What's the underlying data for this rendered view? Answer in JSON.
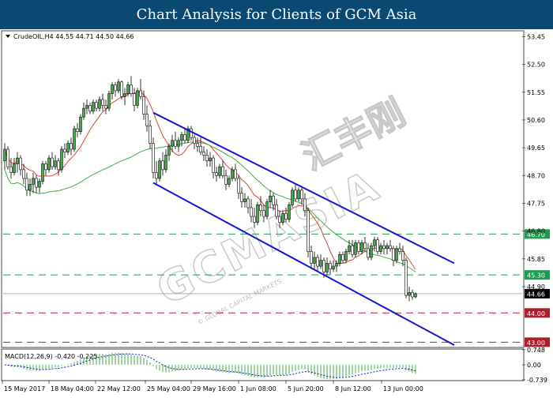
{
  "banner": {
    "title": "Chart Analysis for Clients of GCM Asia"
  },
  "watermark": {
    "text": "GCMASIA",
    "cn_text": "汇丰刚",
    "sub": "© GLOBAL CAPITAL MARKETS"
  },
  "chart_data": [
    {
      "type": "candlestick",
      "symbol_label": "CrudeOIL,H4  44.55 44.71 44.50 44.66",
      "symbol": "CrudeOIL",
      "timeframe": "H4",
      "ohlc_last": {
        "open": 44.55,
        "high": 44.71,
        "low": 44.5,
        "close": 44.66
      },
      "ylim": [
        42.82,
        53.65
      ],
      "y_ticks": [
        53.45,
        52.5,
        51.55,
        50.6,
        49.65,
        48.7,
        47.75,
        46.8,
        45.85,
        44.9
      ],
      "x_ticks": [
        "15 May 2017",
        "18 May 04:00",
        "22 May 12:00",
        "25 May 04:00",
        "29 May 16:00",
        "1 Jun 08:00",
        "5 Jun 20:00",
        "8 Jun 12:00",
        "13 Jun 00:00"
      ],
      "current_price": {
        "value": 44.66,
        "label": "44.66",
        "color": "#000000"
      },
      "levels": [
        {
          "value": 46.7,
          "label": "46.70",
          "kind": "resistance",
          "color": "#1c9c4f"
        },
        {
          "value": 45.3,
          "label": "45.30",
          "kind": "support",
          "color": "#1c9c4f"
        },
        {
          "value": 44.0,
          "label": "44.00",
          "kind": "support",
          "color": "#b01d2a"
        },
        {
          "value": 43.0,
          "label": "43.00",
          "kind": "support",
          "color": "#b01d2a"
        }
      ],
      "channel": {
        "color": "#1515d6",
        "upper": [
          [
            "24 May 20:00",
            50.85
          ],
          [
            "15 Jun 12:00",
            45.7
          ]
        ],
        "lower": [
          [
            "24 May 20:00",
            48.45
          ],
          [
            "15 Jun 12:00",
            42.9
          ]
        ]
      },
      "candles": [
        [
          "15 May 00:00",
          49.2,
          49.8,
          48.9,
          49.6
        ],
        [
          "15 May 04:00",
          49.6,
          49.7,
          48.9,
          49.0
        ],
        [
          "15 May 08:00",
          49.0,
          49.3,
          48.6,
          48.8
        ],
        [
          "15 May 12:00",
          48.8,
          49.3,
          48.7,
          49.1
        ],
        [
          "15 May 16:00",
          49.1,
          49.5,
          48.8,
          49.3
        ],
        [
          "15 May 20:00",
          49.3,
          49.4,
          48.7,
          48.9
        ],
        [
          "16 May 00:00",
          48.9,
          49.1,
          48.4,
          48.6
        ],
        [
          "16 May 04:00",
          48.6,
          48.8,
          48.0,
          48.2
        ],
        [
          "16 May 08:00",
          48.2,
          48.6,
          48.0,
          48.4
        ],
        [
          "16 May 12:00",
          48.4,
          48.8,
          48.1,
          48.6
        ],
        [
          "16 May 16:00",
          48.6,
          48.7,
          48.1,
          48.3
        ],
        [
          "16 May 20:00",
          48.3,
          48.6,
          48.1,
          48.5
        ],
        [
          "17 May 00:00",
          48.5,
          49.2,
          48.4,
          49.1
        ],
        [
          "17 May 04:00",
          49.1,
          49.2,
          48.7,
          48.9
        ],
        [
          "17 May 08:00",
          48.9,
          49.4,
          48.8,
          49.3
        ],
        [
          "17 May 12:00",
          49.3,
          49.5,
          48.9,
          49.0
        ],
        [
          "17 May 16:00",
          49.0,
          49.4,
          48.9,
          49.2
        ],
        [
          "17 May 20:00",
          49.2,
          49.3,
          48.7,
          48.9
        ],
        [
          "18 May 00:00",
          48.9,
          49.7,
          48.8,
          49.6
        ],
        [
          "18 May 04:00",
          49.6,
          49.8,
          49.3,
          49.5
        ],
        [
          "18 May 08:00",
          49.5,
          49.9,
          49.4,
          49.8
        ],
        [
          "18 May 12:00",
          49.8,
          50.0,
          49.4,
          49.6
        ],
        [
          "18 May 16:00",
          49.6,
          50.4,
          49.5,
          50.3
        ],
        [
          "18 May 20:00",
          50.3,
          50.5,
          50.0,
          50.2
        ],
        [
          "19 May 00:00",
          50.2,
          50.8,
          50.1,
          50.7
        ],
        [
          "19 May 04:00",
          50.7,
          51.2,
          50.6,
          51.0
        ],
        [
          "19 May 08:00",
          51.0,
          51.3,
          50.8,
          51.1
        ],
        [
          "19 May 12:00",
          51.1,
          51.2,
          50.8,
          50.9
        ],
        [
          "19 May 16:00",
          50.9,
          51.3,
          50.8,
          51.2
        ],
        [
          "19 May 20:00",
          51.2,
          51.3,
          50.9,
          51.0
        ],
        [
          "22 May 00:00",
          51.0,
          51.4,
          50.9,
          51.3
        ],
        [
          "22 May 04:00",
          51.3,
          51.5,
          50.9,
          51.1
        ],
        [
          "22 May 08:00",
          51.1,
          51.3,
          50.8,
          51.0
        ],
        [
          "22 May 12:00",
          51.0,
          51.6,
          50.9,
          51.5
        ],
        [
          "22 May 16:00",
          51.5,
          51.9,
          51.3,
          51.8
        ],
        [
          "22 May 20:00",
          51.8,
          51.9,
          51.4,
          51.6
        ],
        [
          "23 May 00:00",
          51.6,
          52.0,
          51.5,
          51.9
        ],
        [
          "23 May 04:00",
          51.9,
          51.95,
          51.3,
          51.4
        ],
        [
          "23 May 08:00",
          51.4,
          51.7,
          51.1,
          51.5
        ],
        [
          "23 May 12:00",
          51.5,
          51.9,
          51.4,
          51.8
        ],
        [
          "23 May 16:00",
          51.8,
          52.1,
          51.4,
          51.5
        ],
        [
          "23 May 20:00",
          51.5,
          51.7,
          50.9,
          51.1
        ],
        [
          "24 May 00:00",
          51.1,
          51.7,
          51.0,
          51.6
        ],
        [
          "24 May 04:00",
          51.6,
          52.0,
          51.3,
          51.4
        ],
        [
          "24 May 08:00",
          51.4,
          51.6,
          50.6,
          50.8
        ],
        [
          "24 May 12:00",
          50.8,
          51.1,
          50.2,
          50.4
        ],
        [
          "24 May 16:00",
          50.4,
          50.6,
          49.6,
          49.8
        ],
        [
          "24 May 20:00",
          49.8,
          50.0,
          48.6,
          48.8
        ],
        [
          "25 May 00:00",
          48.8,
          49.2,
          48.4,
          48.6
        ],
        [
          "25 May 04:00",
          48.6,
          49.3,
          48.5,
          49.2
        ],
        [
          "25 May 08:00",
          49.2,
          49.5,
          48.7,
          48.9
        ],
        [
          "25 May 12:00",
          48.9,
          49.6,
          48.8,
          49.4
        ],
        [
          "25 May 16:00",
          49.4,
          49.8,
          49.2,
          49.7
        ],
        [
          "25 May 20:00",
          49.7,
          50.1,
          49.5,
          49.9
        ],
        [
          "26 May 00:00",
          49.9,
          50.2,
          49.6,
          49.7
        ],
        [
          "26 May 04:00",
          49.7,
          50.0,
          49.5,
          49.9
        ],
        [
          "26 May 08:00",
          49.9,
          50.2,
          49.7,
          50.1
        ],
        [
          "26 May 12:00",
          50.1,
          50.3,
          49.8,
          49.9
        ],
        [
          "26 May 16:00",
          49.9,
          50.4,
          49.8,
          50.3
        ],
        [
          "26 May 20:00",
          50.3,
          50.4,
          49.9,
          50.0
        ],
        [
          "29 May 00:00",
          50.0,
          50.1,
          49.6,
          49.8
        ],
        [
          "29 May 04:00",
          49.8,
          50.0,
          49.5,
          49.7
        ],
        [
          "29 May 08:00",
          49.7,
          50.0,
          49.4,
          49.5
        ],
        [
          "29 May 12:00",
          49.5,
          49.7,
          49.2,
          49.4
        ],
        [
          "29 May 16:00",
          49.4,
          49.6,
          49.0,
          49.2
        ],
        [
          "29 May 20:00",
          49.2,
          49.5,
          49.0,
          49.3
        ],
        [
          "30 May 00:00",
          49.3,
          49.4,
          48.6,
          48.8
        ],
        [
          "30 May 04:00",
          48.8,
          49.0,
          48.5,
          48.7
        ],
        [
          "30 May 08:00",
          48.7,
          49.1,
          48.6,
          49.0
        ],
        [
          "30 May 12:00",
          49.0,
          49.2,
          48.6,
          48.7
        ],
        [
          "30 May 16:00",
          48.7,
          48.9,
          48.2,
          48.4
        ],
        [
          "30 May 20:00",
          48.4,
          48.7,
          48.3,
          48.6
        ],
        [
          "31 May 00:00",
          48.6,
          49.0,
          48.5,
          48.9
        ],
        [
          "31 May 04:00",
          48.9,
          49.1,
          48.5,
          48.6
        ],
        [
          "31 May 08:00",
          48.6,
          48.7,
          47.9,
          48.1
        ],
        [
          "31 May 12:00",
          48.1,
          48.3,
          47.6,
          47.8
        ],
        [
          "31 May 16:00",
          47.8,
          48.1,
          47.6,
          47.9
        ],
        [
          "31 May 20:00",
          47.9,
          48.0,
          47.4,
          47.6
        ],
        [
          "1 Jun 00:00",
          47.6,
          47.9,
          47.1,
          47.3
        ],
        [
          "1 Jun 04:00",
          47.3,
          47.6,
          46.9,
          47.1
        ],
        [
          "1 Jun 08:00",
          47.1,
          47.8,
          47.0,
          47.7
        ],
        [
          "1 Jun 12:00",
          47.7,
          48.0,
          47.3,
          47.5
        ],
        [
          "1 Jun 16:00",
          47.5,
          47.7,
          47.1,
          47.3
        ],
        [
          "1 Jun 20:00",
          47.3,
          47.9,
          47.2,
          47.8
        ],
        [
          "2 Jun 00:00",
          47.8,
          48.2,
          47.6,
          48.0
        ],
        [
          "2 Jun 04:00",
          48.0,
          48.1,
          47.5,
          47.7
        ],
        [
          "2 Jun 08:00",
          47.7,
          47.9,
          47.2,
          47.3
        ],
        [
          "2 Jun 12:00",
          47.3,
          47.5,
          46.9,
          47.1
        ],
        [
          "2 Jun 16:00",
          47.1,
          47.5,
          47.0,
          47.4
        ],
        [
          "2 Jun 20:00",
          47.4,
          47.6,
          47.1,
          47.2
        ],
        [
          "5 Jun 00:00",
          47.2,
          47.8,
          47.1,
          47.7
        ],
        [
          "5 Jun 04:00",
          47.7,
          48.3,
          47.6,
          48.2
        ],
        [
          "5 Jun 08:00",
          48.2,
          48.4,
          47.8,
          47.9
        ],
        [
          "5 Jun 12:00",
          47.9,
          48.3,
          47.8,
          48.2
        ],
        [
          "5 Jun 16:00",
          48.2,
          48.3,
          47.7,
          47.9
        ],
        [
          "5 Jun 20:00",
          47.9,
          48.1,
          47.3,
          47.5
        ],
        [
          "6 Jun 00:00",
          47.5,
          47.6,
          45.9,
          46.1
        ],
        [
          "6 Jun 04:00",
          46.1,
          46.3,
          45.5,
          45.7
        ],
        [
          "6 Jun 08:00",
          45.7,
          46.1,
          45.5,
          45.9
        ],
        [
          "6 Jun 12:00",
          45.9,
          46.0,
          45.4,
          45.6
        ],
        [
          "6 Jun 16:00",
          45.6,
          46.0,
          45.5,
          45.8
        ],
        [
          "6 Jun 20:00",
          45.8,
          45.9,
          45.2,
          45.4
        ],
        [
          "7 Jun 00:00",
          45.4,
          45.9,
          45.3,
          45.7
        ],
        [
          "7 Jun 04:00",
          45.7,
          45.8,
          45.3,
          45.5
        ],
        [
          "7 Jun 08:00",
          45.5,
          45.8,
          45.4,
          45.6
        ],
        [
          "7 Jun 12:00",
          45.6,
          45.8,
          45.4,
          45.7
        ],
        [
          "7 Jun 16:00",
          45.7,
          46.1,
          45.6,
          46.0
        ],
        [
          "7 Jun 20:00",
          46.0,
          46.1,
          45.7,
          45.8
        ],
        [
          "8 Jun 00:00",
          45.8,
          46.2,
          45.7,
          46.1
        ],
        [
          "8 Jun 04:00",
          46.1,
          46.5,
          46.0,
          46.3
        ],
        [
          "8 Jun 08:00",
          46.3,
          46.5,
          45.9,
          46.0
        ],
        [
          "8 Jun 12:00",
          46.0,
          46.5,
          45.9,
          46.4
        ],
        [
          "8 Jun 16:00",
          46.4,
          46.5,
          46.0,
          46.1
        ],
        [
          "8 Jun 20:00",
          46.1,
          46.5,
          46.0,
          46.4
        ],
        [
          "9 Jun 00:00",
          46.4,
          46.6,
          46.1,
          46.2
        ],
        [
          "9 Jun 04:00",
          46.2,
          46.4,
          45.8,
          45.9
        ],
        [
          "9 Jun 08:00",
          45.9,
          46.4,
          45.8,
          46.3
        ],
        [
          "9 Jun 12:00",
          46.3,
          46.6,
          46.1,
          46.5
        ],
        [
          "9 Jun 16:00",
          46.5,
          46.6,
          46.0,
          46.1
        ],
        [
          "9 Jun 20:00",
          46.1,
          46.4,
          46.0,
          46.3
        ],
        [
          "12 Jun 00:00",
          46.3,
          46.5,
          46.0,
          46.2
        ],
        [
          "12 Jun 04:00",
          46.2,
          46.4,
          46.0,
          46.3
        ],
        [
          "12 Jun 08:00",
          46.3,
          46.5,
          46.1,
          46.2
        ],
        [
          "12 Jun 12:00",
          46.2,
          46.3,
          45.6,
          45.8
        ],
        [
          "12 Jun 16:00",
          45.8,
          46.3,
          45.7,
          46.2
        ],
        [
          "12 Jun 20:00",
          46.2,
          46.4,
          46.0,
          46.1
        ],
        [
          "13 Jun 00:00",
          46.1,
          46.3,
          45.6,
          45.8
        ],
        [
          "13 Jun 04:00",
          45.8,
          45.9,
          44.5,
          44.6
        ],
        [
          "13 Jun 08:00",
          44.6,
          44.9,
          44.4,
          44.7
        ],
        [
          "13 Jun 12:00",
          44.7,
          44.8,
          44.45,
          44.55
        ],
        [
          "13 Jun 16:00",
          44.55,
          44.71,
          44.5,
          44.66
        ]
      ],
      "moving_averages": [
        {
          "name": "MA-fast",
          "color": "#e0403a"
        },
        {
          "name": "MA-slow",
          "color": "#3fae46"
        }
      ]
    },
    {
      "type": "histogram+line",
      "label": "MACD(12,26,9) -0.420 -0.225",
      "name": "MACD(12,26,9)",
      "values_shown": {
        "macd": -0.42,
        "signal": -0.225
      },
      "ylim": [
        -0.78,
        0.78
      ],
      "y_ticks": [
        "0.748",
        "0.00",
        "-0.739"
      ],
      "histogram_color": "#3fae46",
      "signal_color": "#1515d6"
    }
  ]
}
